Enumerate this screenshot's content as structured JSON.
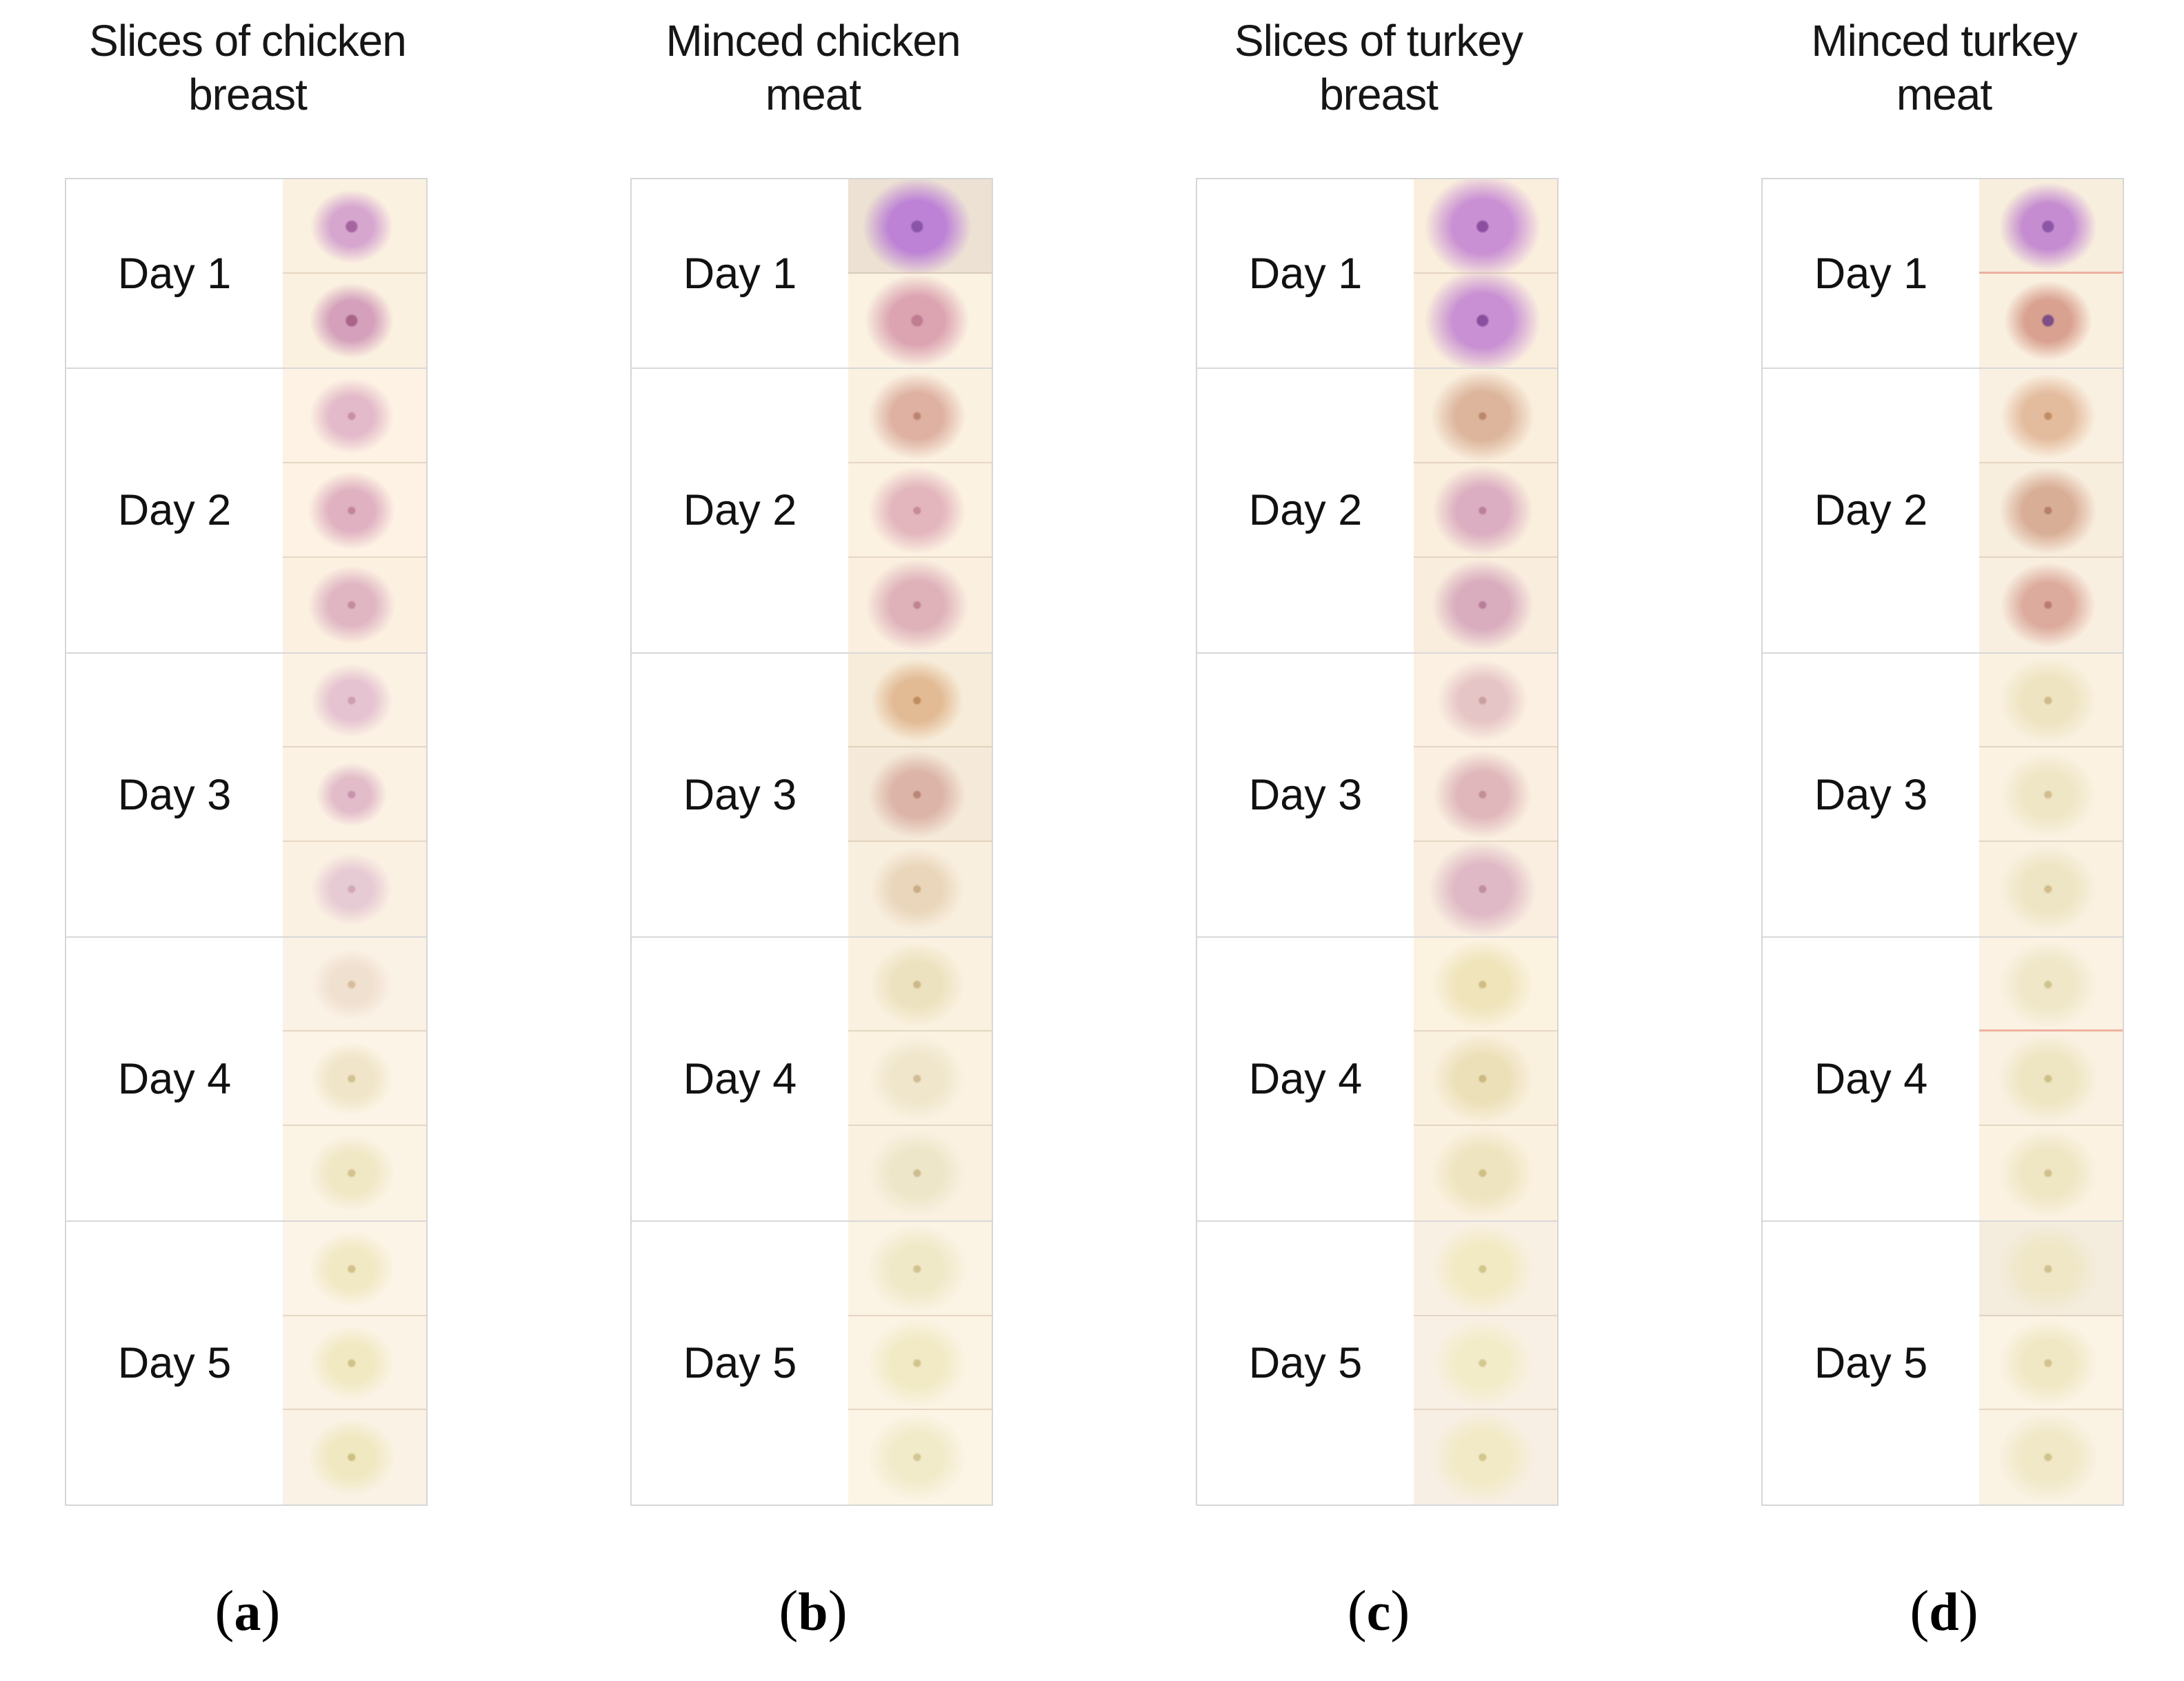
{
  "figure": {
    "panels": [
      {
        "id": "a",
        "caption": "(a)",
        "title_lines": [
          "Slices of chicken",
          "breast"
        ],
        "days": [
          {
            "label": "Day 1",
            "spots": [
              {
                "color": "#d6a6cf",
                "center": "#a466a0",
                "cr": 10,
                "bg": "#fbf1e0",
                "size": [
                  120,
                  108
                ]
              },
              {
                "color": "#d4a0bb",
                "center": "#a9648a",
                "cr": 10,
                "bg": "#fbf1e0",
                "size": [
                  122,
                  110
                ]
              }
            ]
          },
          {
            "label": "Day 2",
            "spots": [
              {
                "color": "#e3bac9",
                "center": "#c68fa6",
                "bg": "#fdf2e3",
                "size": [
                  122,
                  110
                ]
              },
              {
                "color": "#e0b1c1",
                "center": "#c2849c",
                "bg": "#fdf2e3",
                "size": [
                  126,
                  114
                ]
              },
              {
                "color": "#e0b6c3",
                "center": "#c48ba0",
                "bg": "#fcf1e1",
                "size": [
                  128,
                  115
                ]
              }
            ]
          },
          {
            "label": "Day 3",
            "spots": [
              {
                "color": "#e5c3d0",
                "center": "#cc9fb4",
                "bg": "#fcf2e4",
                "size": [
                  120,
                  108
                ]
              },
              {
                "color": "#e2bcc9",
                "center": "#c793ab",
                "bg": "#fcf2e4",
                "size": [
                  104,
                  94
                ]
              },
              {
                "color": "#e7cbd4",
                "center": "#d0a8b8",
                "bg": "#fbf1e3",
                "size": [
                  118,
                  106
                ]
              }
            ]
          },
          {
            "label": "Day 4",
            "spots": [
              {
                "color": "#f0e0d0",
                "center": "#d6bda0",
                "bg": "#fbf2e6",
                "size": [
                  118,
                  106
                ]
              },
              {
                "color": "#f0e5c8",
                "center": "#d3c194",
                "bg": "#fcf4e6",
                "size": [
                  120,
                  108
                ]
              },
              {
                "color": "#f0e7c5",
                "center": "#d2c28e",
                "bg": "#fbf3e4",
                "size": [
                  124,
                  112
                ]
              }
            ]
          },
          {
            "label": "Day 5",
            "spots": [
              {
                "color": "#f1e8c4",
                "center": "#d0c288",
                "bg": "#fcf4e6",
                "size": [
                  124,
                  110
                ]
              },
              {
                "color": "#f1e9c2",
                "center": "#cfc287",
                "bg": "#fbf3e5",
                "size": [
                  122,
                  108
                ]
              },
              {
                "color": "#f0e8c0",
                "center": "#cec085",
                "bg": "#faf2e4",
                "size": [
                  126,
                  112
                ]
              }
            ]
          }
        ]
      },
      {
        "id": "b",
        "caption": "(b)",
        "title_lines": [
          "Minced chicken",
          "meat"
        ],
        "days": [
          {
            "label": "Day 1",
            "spots": [
              {
                "color": "#bd81d6",
                "center": "#8a55a8",
                "cr": 10,
                "bg": "#ece1d3",
                "size": [
                  158,
                  142
                ]
              },
              {
                "color": "#dca4b1",
                "center": "#c07d92",
                "cr": 10,
                "bg": "#fbf2e2",
                "size": [
                  152,
                  136
                ]
              }
            ]
          },
          {
            "label": "Day 2",
            "spots": [
              {
                "color": "#deb1a2",
                "center": "#bd8472",
                "bg": "#fbf1e1",
                "size": [
                  142,
                  128
                ]
              },
              {
                "color": "#e3b6bd",
                "center": "#c68b95",
                "bg": "#fcf2e2",
                "size": [
                  142,
                  128
                ]
              },
              {
                "color": "#dfb2ba",
                "center": "#c08490",
                "bg": "#fbf0e0",
                "size": [
                  150,
                  135
                ]
              }
            ]
          },
          {
            "label": "Day 3",
            "spots": [
              {
                "color": "#e2bb95",
                "center": "#bf8d5e",
                "bg": "#f7ecd9",
                "size": [
                  134,
                  120
                ]
              },
              {
                "color": "#dcb5a8",
                "center": "#ba8677",
                "bg": "#f5ead9",
                "size": [
                  142,
                  128
                ]
              },
              {
                "color": "#e9d6bb",
                "center": "#cbae85",
                "bg": "#f9efdf",
                "size": [
                  136,
                  122
                ]
              }
            ]
          },
          {
            "label": "Day 4",
            "spots": [
              {
                "color": "#ede2bf",
                "center": "#cdb989",
                "bg": "#faf1e0",
                "size": [
                  138,
                  124
                ]
              },
              {
                "color": "#efe6cb",
                "center": "#d1bd95",
                "bg": "#fbf2e2",
                "size": [
                  140,
                  126
                ]
              },
              {
                "color": "#eee6c9",
                "center": "#d0bc92",
                "bg": "#faf1e1",
                "size": [
                  142,
                  128
                ]
              }
            ]
          },
          {
            "label": "Day 5",
            "spots": [
              {
                "color": "#f0e9c8",
                "center": "#d1c391",
                "bg": "#fbf3e4",
                "size": [
                  146,
                  130
                ]
              },
              {
                "color": "#f1eac4",
                "center": "#d2c48e",
                "bg": "#fbf3e3",
                "size": [
                  142,
                  127
                ]
              },
              {
                "color": "#f1ebca",
                "center": "#d3c694",
                "bg": "#fcf4e5",
                "size": [
                  144,
                  129
                ]
              }
            ]
          }
        ]
      },
      {
        "id": "c",
        "caption": "(c)",
        "title_lines": [
          "Slices of turkey",
          "breast"
        ],
        "days": [
          {
            "label": "Day 1",
            "spots": [
              {
                "color": "#ca90d4",
                "center": "#8c4fa0",
                "cr": 10,
                "bg": "#faeedd",
                "size": [
                  168,
                  152
                ]
              },
              {
                "color": "#c991d3",
                "center": "#8b4e9f",
                "cr": 10,
                "bg": "#faeedd",
                "size": [
                  168,
                  152
                ]
              }
            ]
          },
          {
            "label": "Day 2",
            "spots": [
              {
                "color": "#dcb59c",
                "center": "#b9886b",
                "bg": "#faeedd",
                "size": [
                  150,
                  134
                ]
              },
              {
                "color": "#dcaec1",
                "center": "#bb7f9c",
                "bg": "#faeedd",
                "size": [
                  146,
                  132
                ]
              },
              {
                "color": "#d9acbe",
                "center": "#b87d99",
                "bg": "#f9edde",
                "size": [
                  148,
                  133
                ]
              }
            ]
          },
          {
            "label": "Day 3",
            "spots": [
              {
                "color": "#e6c5c6",
                "center": "#cb9fa0",
                "bg": "#fbf0e2",
                "size": [
                  132,
                  118
                ]
              },
              {
                "color": "#e0b8bc",
                "center": "#c38f94",
                "bg": "#faefe0",
                "size": [
                  142,
                  128
                ]
              },
              {
                "color": "#dfb9c5",
                "center": "#c08da1",
                "bg": "#f9eee0",
                "size": [
                  156,
                  140
                ]
              }
            ]
          },
          {
            "label": "Day 4",
            "spots": [
              {
                "color": "#efe4ba",
                "center": "#d0bd83",
                "bg": "#fbf2e0",
                "size": [
                  146,
                  130
                ]
              },
              {
                "color": "#ece0b9",
                "center": "#ccba82",
                "bg": "#faf0de",
                "size": [
                  148,
                  132
                ]
              },
              {
                "color": "#eee4bf",
                "center": "#cfbf87",
                "bg": "#fbf1e0",
                "size": [
                  150,
                  134
                ]
              }
            ]
          },
          {
            "label": "Day 5",
            "spots": [
              {
                "color": "#f2eac3",
                "center": "#d2c58b",
                "bg": "#f9f0e4",
                "size": [
                  150,
                  134
                ]
              },
              {
                "color": "#f3ecc9",
                "center": "#d4c892",
                "bg": "#f9f0e5",
                "size": [
                  148,
                  132
                ]
              },
              {
                "color": "#f2eac6",
                "center": "#d2c68f",
                "bg": "#f8efe4",
                "size": [
                  152,
                  136
                ]
              }
            ]
          }
        ]
      },
      {
        "id": "d",
        "caption": "(d)",
        "title_lines": [
          "Minced turkey",
          "meat"
        ],
        "days": [
          {
            "label": "Day 1",
            "spots": [
              {
                "color": "#c58cd1",
                "center": "#8d56a4",
                "cr": 10,
                "bg": "#f8eedd",
                "size": [
                  142,
                  128
                ],
                "seam": "red"
              },
              {
                "color": "#d9a190",
                "center": "#7d4f86",
                "cr": 10,
                "bg": "#faf0e0",
                "size": [
                  128,
                  116
                ]
              }
            ]
          },
          {
            "label": "Day 2",
            "spots": [
              {
                "color": "#e3bb9d",
                "center": "#c08d66",
                "bg": "#faf0e1",
                "size": [
                  138,
                  124
                ]
              },
              {
                "color": "#d9ae97",
                "center": "#b57f68",
                "bg": "#f8eede",
                "size": [
                  142,
                  128
                ]
              },
              {
                "color": "#dcab9d",
                "center": "#ba7d70",
                "bg": "#f9efe0",
                "size": [
                  138,
                  124
                ]
              }
            ]
          },
          {
            "label": "Day 3",
            "spots": [
              {
                "color": "#eee4c1",
                "center": "#cfbb89",
                "bg": "#faf1e1",
                "size": [
                  142,
                  127
                ]
              },
              {
                "color": "#efe6c6",
                "center": "#d1bd8e",
                "bg": "#fbf2e2",
                "size": [
                  140,
                  126
                ]
              },
              {
                "color": "#eee5c4",
                "center": "#d0bc8c",
                "bg": "#faf1e1",
                "size": [
                  142,
                  127
                ]
              }
            ]
          },
          {
            "label": "Day 4",
            "spots": [
              {
                "color": "#efe7c8",
                "center": "#d1c390",
                "bg": "#fbf2e3",
                "size": [
                  144,
                  129
                ],
                "seam": "red"
              },
              {
                "color": "#eee5c2",
                "center": "#cfc08a",
                "bg": "#faf1e2",
                "size": [
                  146,
                  131
                ]
              },
              {
                "color": "#efe6c4",
                "center": "#d0c18c",
                "bg": "#fbf2e2",
                "size": [
                  144,
                  129
                ]
              }
            ]
          },
          {
            "label": "Day 5",
            "spots": [
              {
                "color": "#efe7c6",
                "center": "#d0c28e",
                "bg": "#f4ecdd",
                "size": [
                  148,
                  132
                ]
              },
              {
                "color": "#f0e8c4",
                "center": "#d1c38c",
                "bg": "#fbf3e4",
                "size": [
                  142,
                  127
                ]
              },
              {
                "color": "#f0e8c6",
                "center": "#d1c38e",
                "bg": "#faf2e3",
                "size": [
                  146,
                  131
                ]
              }
            ]
          }
        ]
      }
    ]
  }
}
